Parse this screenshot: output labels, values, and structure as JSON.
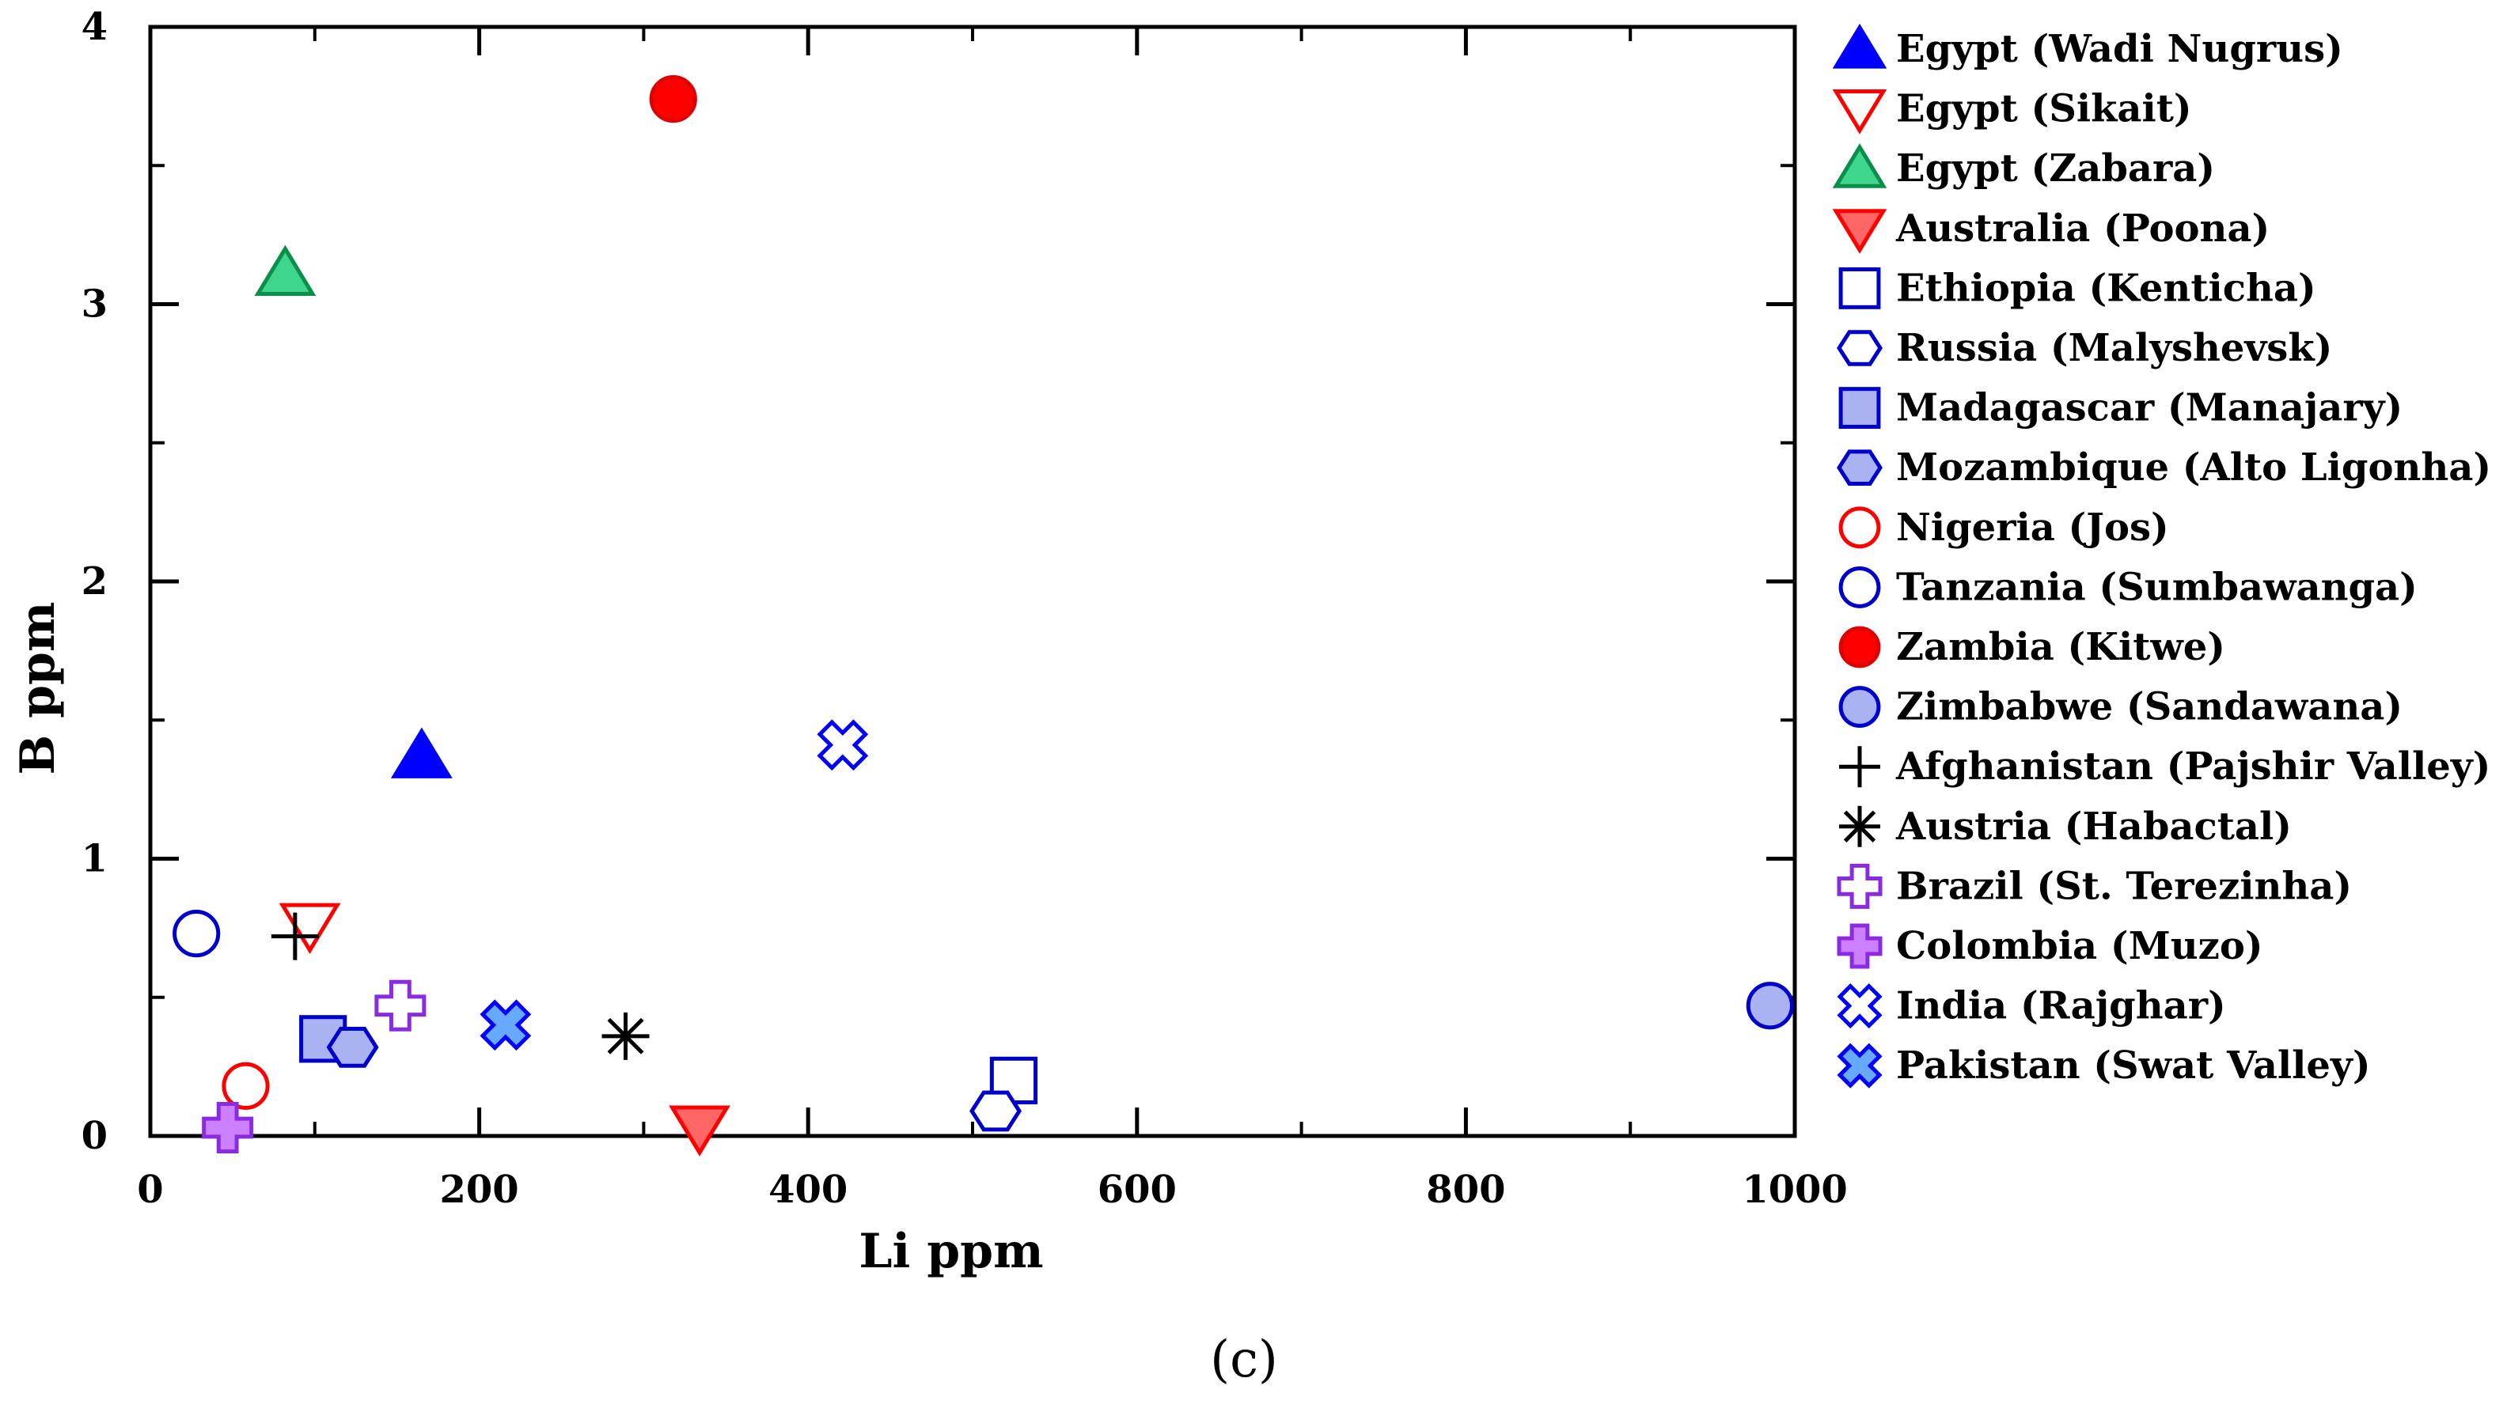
{
  "chart_data": {
    "type": "scatter",
    "panel_label": "(c)",
    "xlabel": "Li ppm",
    "ylabel": "B ppm",
    "xlim": [
      0,
      1000
    ],
    "ylim": [
      0,
      4
    ],
    "xticks": [
      "0",
      "200",
      "400",
      "600",
      "800",
      "1000"
    ],
    "yticks": [
      "0",
      "1",
      "2",
      "3",
      "4"
    ],
    "legend_position": "right",
    "series": [
      {
        "name": "Egypt (Wadi Nugrus)",
        "marker": "triangle-up",
        "stroke": "#0000ff",
        "fill": "#0000ff",
        "points": [
          [
            165,
            1.37
          ]
        ]
      },
      {
        "name": "Egypt (Sikait)",
        "marker": "triangle-down",
        "stroke": "#ff0000",
        "fill": "#ffffff",
        "points": [
          [
            97,
            0.76
          ]
        ]
      },
      {
        "name": "Egypt (Zabara)",
        "marker": "triangle-up",
        "stroke": "#0a8f4a",
        "fill": "#3dd68c",
        "points": [
          [
            82,
            3.11
          ]
        ]
      },
      {
        "name": "Australia (Poona)",
        "marker": "triangle-down",
        "stroke": "#ff0000",
        "fill": "#ff6666",
        "points": [
          [
            334,
            0.03
          ]
        ]
      },
      {
        "name": "Ethiopia (Kenticha)",
        "marker": "square",
        "stroke": "#0000cc",
        "fill": "#ffffff",
        "points": [
          [
            525,
            0.2
          ]
        ]
      },
      {
        "name": "Russia (Malyshevsk)",
        "marker": "hexagon",
        "stroke": "#0000cc",
        "fill": "#ffffff",
        "points": [
          [
            514,
            0.09
          ]
        ]
      },
      {
        "name": "Madagascar (Manajary)",
        "marker": "square",
        "stroke": "#0000cc",
        "fill": "#aab2f2",
        "points": [
          [
            105,
            0.35
          ]
        ]
      },
      {
        "name": "Mozambique (Alto Ligonha)",
        "marker": "hexagon",
        "stroke": "#0000cc",
        "fill": "#aab2f2",
        "points": [
          [
            123,
            0.32
          ]
        ]
      },
      {
        "name": "Nigeria (Jos)",
        "marker": "circle",
        "stroke": "#ff0000",
        "fill": "#ffffff",
        "points": [
          [
            58,
            0.18
          ]
        ]
      },
      {
        "name": "Tanzania (Sumbawanga)",
        "marker": "circle",
        "stroke": "#0000cc",
        "fill": "#ffffff",
        "points": [
          [
            28,
            0.73
          ]
        ]
      },
      {
        "name": "Zambia (Kitwe)",
        "marker": "circle",
        "stroke": "#e00000",
        "fill": "#ff0000",
        "points": [
          [
            318,
            3.74
          ]
        ]
      },
      {
        "name": "Zimbabwe (Sandawana)",
        "marker": "circle",
        "stroke": "#0000cc",
        "fill": "#aab2f2",
        "points": [
          [
            985,
            0.47
          ]
        ]
      },
      {
        "name": "Afghanistan (Pajshir Valley)",
        "marker": "plus",
        "stroke": "#000000",
        "fill": "none",
        "points": [
          [
            88,
            0.72
          ]
        ]
      },
      {
        "name": "Austria (Habactal)",
        "marker": "asterisk",
        "stroke": "#000000",
        "fill": "none",
        "points": [
          [
            289,
            0.36
          ]
        ]
      },
      {
        "name": "Brazil (St. Terezinha)",
        "marker": "cross-outline",
        "stroke": "#8a2be2",
        "fill": "#ffffff",
        "points": [
          [
            152,
            0.47
          ]
        ]
      },
      {
        "name": "Colombia (Muzo)",
        "marker": "cross-outline",
        "stroke": "#8a2be2",
        "fill": "#cc80ff",
        "points": [
          [
            47,
            0.03
          ]
        ]
      },
      {
        "name": "India (Rajghar)",
        "marker": "x-outline",
        "stroke": "#0000ff",
        "fill": "#ffffff",
        "points": [
          [
            421,
            1.41
          ]
        ]
      },
      {
        "name": "Pakistan (Swat Valley)",
        "marker": "x-outline",
        "stroke": "#0000ff",
        "fill": "#66aaff",
        "points": [
          [
            216,
            0.4
          ]
        ]
      }
    ]
  }
}
